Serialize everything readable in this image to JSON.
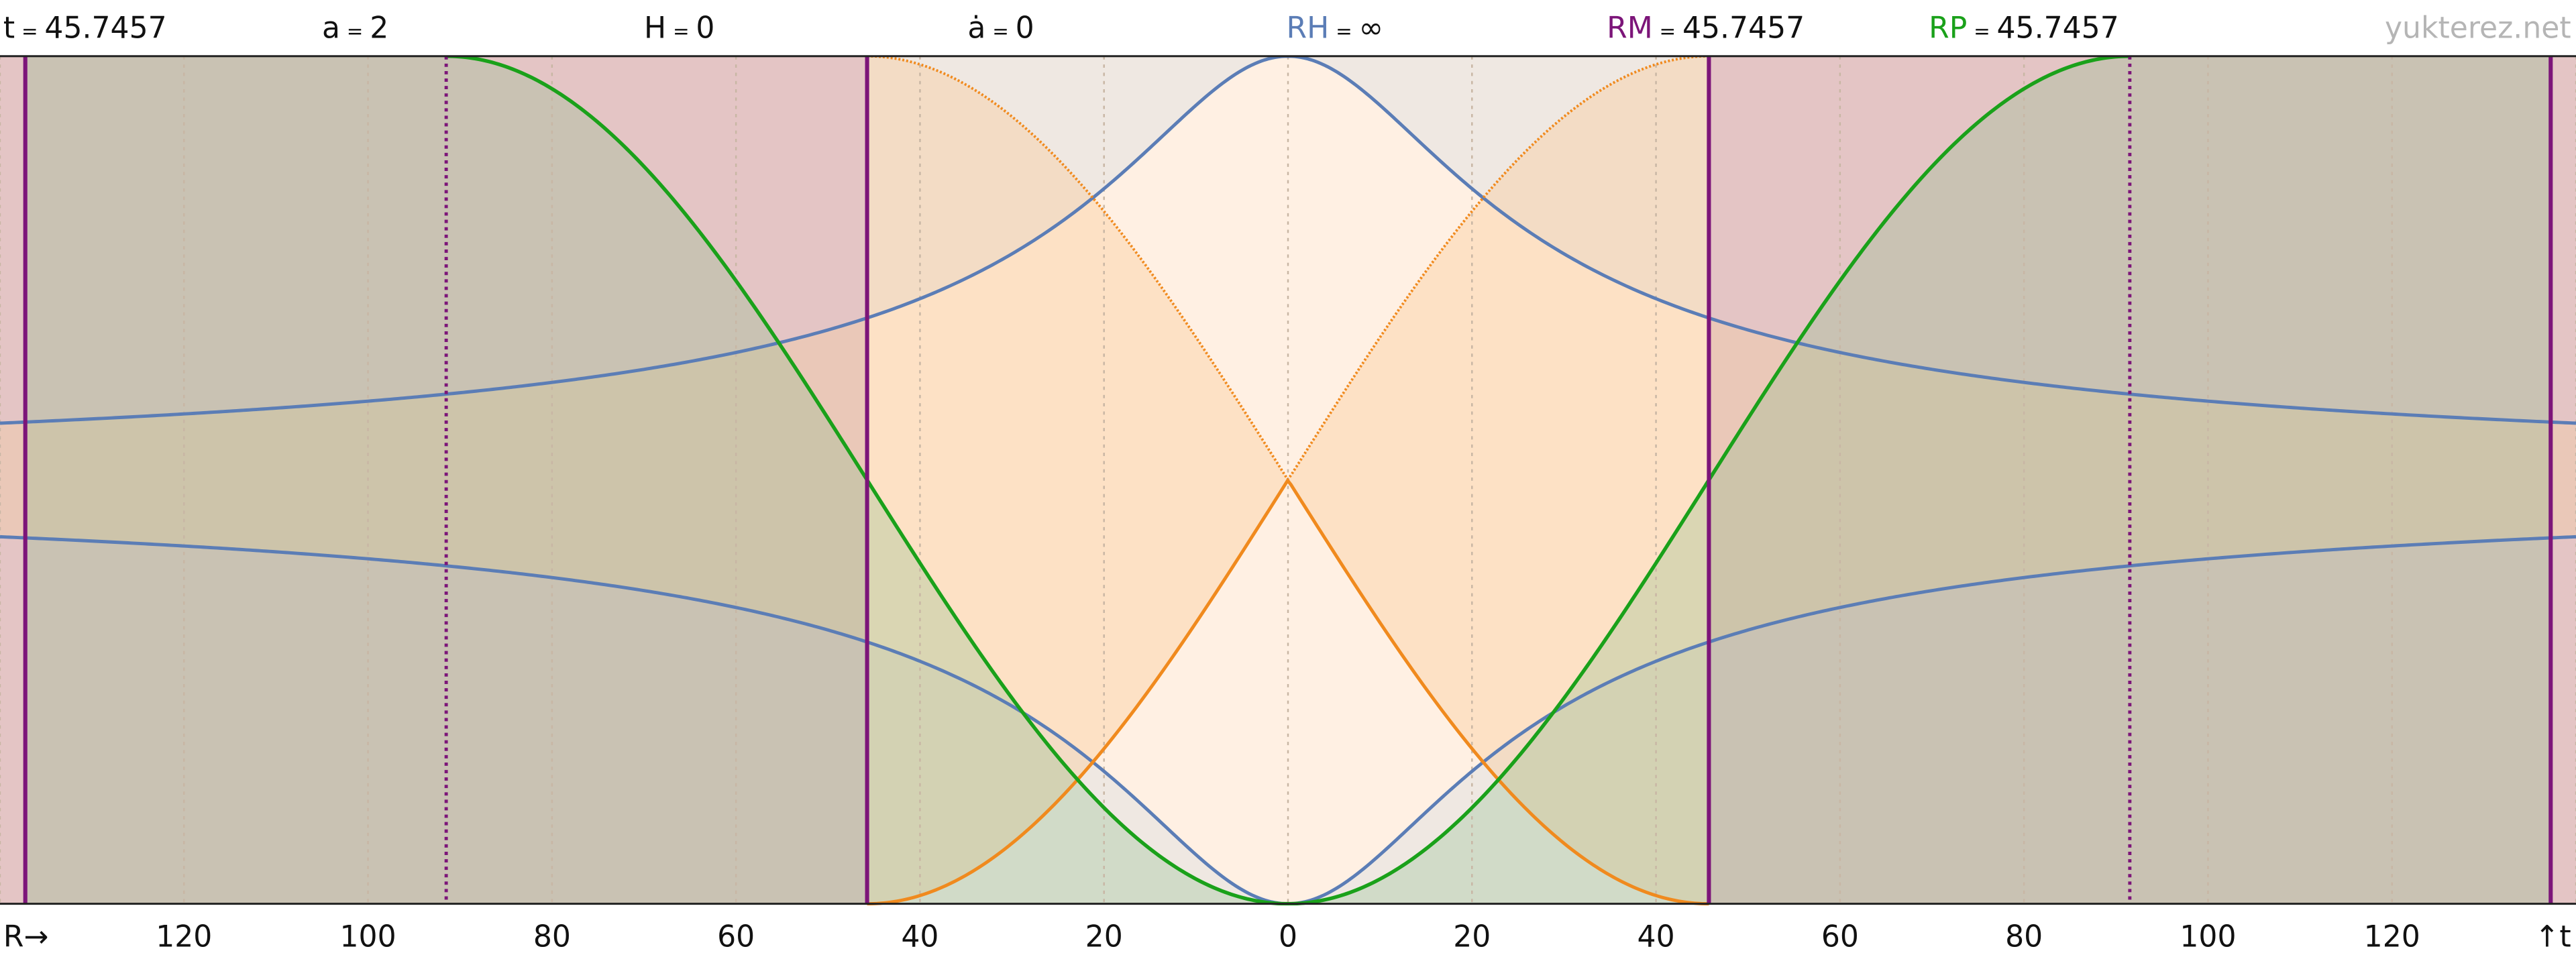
{
  "header": {
    "items": [
      {
        "symbol": "t",
        "equals": "=",
        "value": "45.7457"
      },
      {
        "symbol": "a",
        "equals": "=",
        "value": "2"
      },
      {
        "symbol": "H",
        "equals": "=",
        "value": "0"
      },
      {
        "symbol": "ȧ",
        "equals": "=",
        "value": "0"
      },
      {
        "symbol": "RH",
        "equals": "=",
        "value": "∞"
      },
      {
        "symbol": "RM",
        "equals": "=",
        "value": "45.7457"
      },
      {
        "symbol": "RP",
        "equals": "=",
        "value": "45.7457"
      }
    ],
    "brand": "yukterez.net"
  },
  "axis": {
    "start": "R→",
    "ticks": [
      "120",
      "100",
      "80",
      "60",
      "40",
      "20",
      "0",
      "20",
      "40",
      "60",
      "80",
      "100",
      "120"
    ],
    "end": "↑t"
  }
}
